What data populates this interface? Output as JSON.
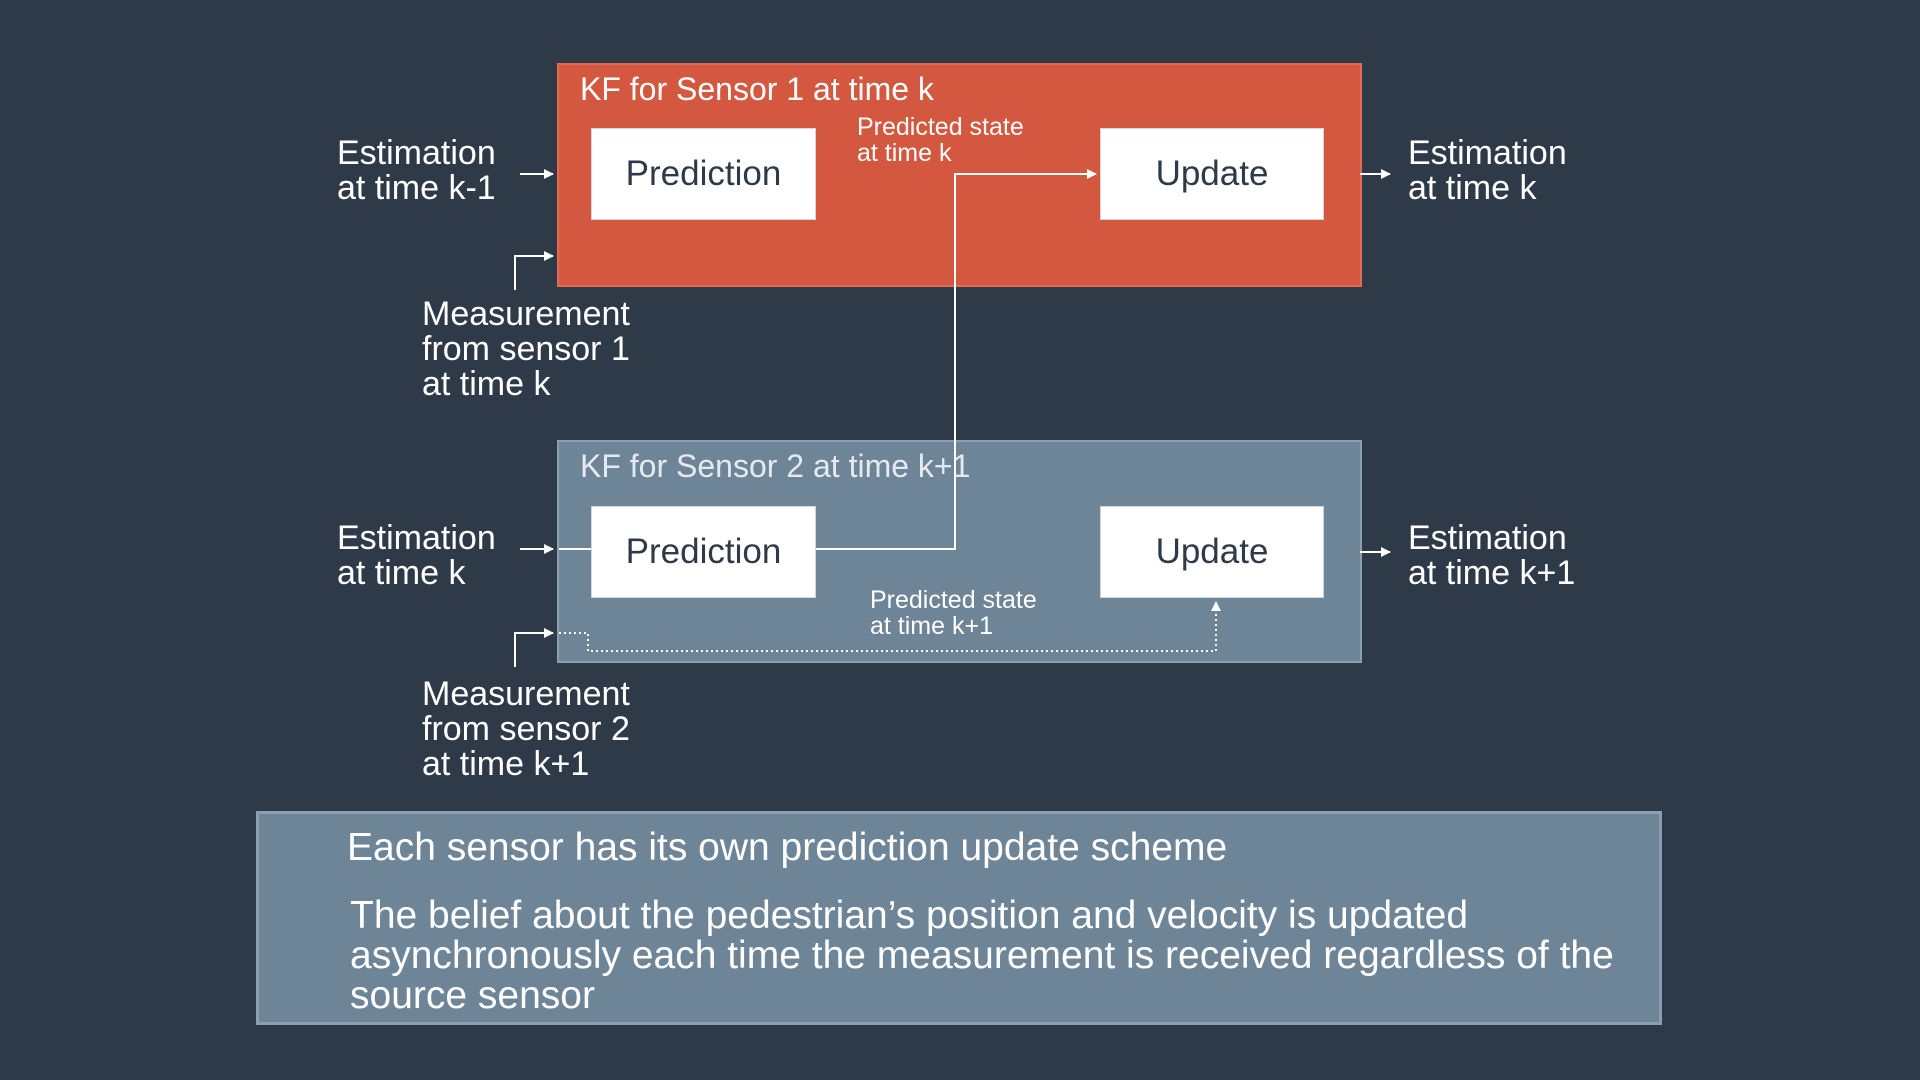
{
  "kf1": {
    "title": "KF for Sensor 1 at time k",
    "prediction": "Prediction",
    "update": "Update",
    "predicted_state": [
      "Predicted state",
      "at time k"
    ]
  },
  "kf2": {
    "title": "KF for Sensor 2 at time k+1",
    "prediction": "Prediction",
    "update": "Update",
    "predicted_state": [
      "Predicted state",
      "at time k+1"
    ]
  },
  "inputs": {
    "est_in_1": [
      "Estimation",
      "at time k-1"
    ],
    "est_in_2": [
      "Estimation",
      "at time k"
    ],
    "meas_1": [
      "Measurement",
      "from sensor 1",
      "at time k"
    ],
    "meas_2": [
      "Measurement",
      "from sensor 2",
      "at time k+1"
    ]
  },
  "outputs": {
    "est_out_1": [
      "Estimation",
      "at time k"
    ],
    "est_out_2": [
      "Estimation",
      "at time k+1"
    ]
  },
  "note": {
    "line1": "Each sensor has its own prediction update scheme",
    "line2": "The belief about the pedestrian’s position and velocity is updated asynchronously each time the measurement is received regardless of the source sensor"
  },
  "colors": {
    "background": "#2e3a48",
    "kf1_fill": "#d45840",
    "kf2_fill": "#6e8497",
    "block_fill": "#ffffff"
  }
}
